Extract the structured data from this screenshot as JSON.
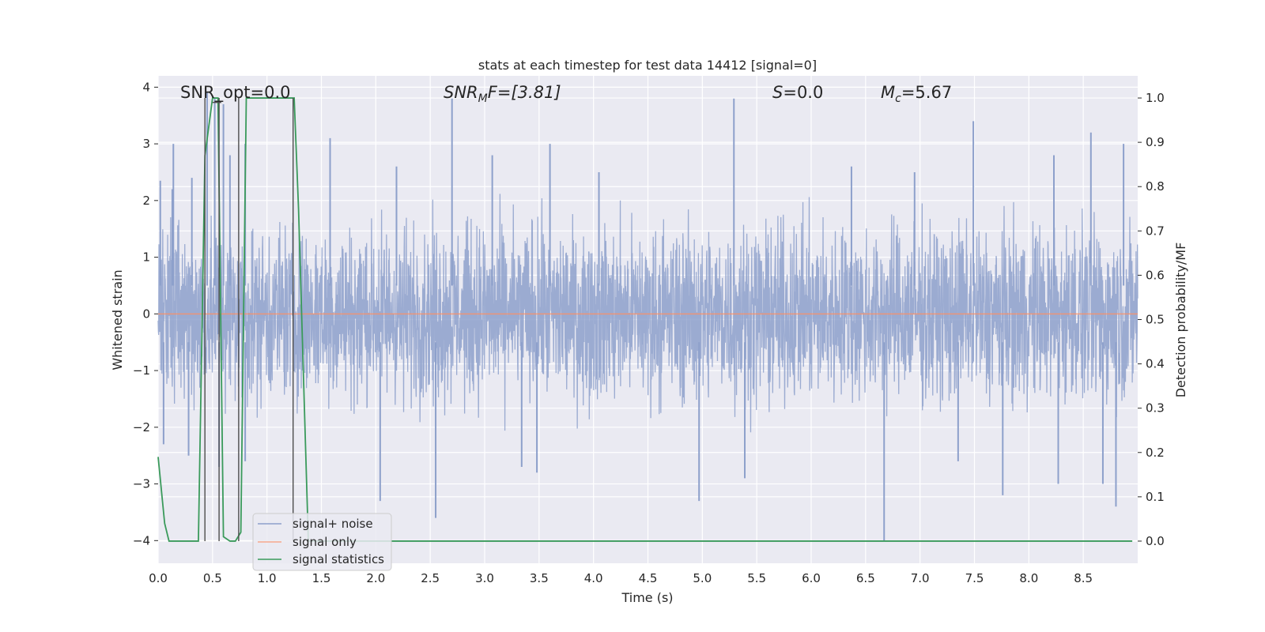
{
  "chart_data": {
    "type": "line",
    "title": "stats at each timestep for test data 14412 [signal=0]",
    "xlabel": "Time (s)",
    "ylabel_left": "Whitened strain",
    "ylabel_right": "Detection probability/MF",
    "xlim": [
      0.0,
      9.0
    ],
    "ylim_left": [
      -4.4,
      4.2
    ],
    "ylim_right": [
      -0.05,
      1.05
    ],
    "x_ticks": [
      0.0,
      0.5,
      1.0,
      1.5,
      2.0,
      2.5,
      3.0,
      3.5,
      4.0,
      4.5,
      5.0,
      5.5,
      6.0,
      6.5,
      7.0,
      7.5,
      8.0,
      8.5
    ],
    "x_tick_labels": [
      "0.0",
      "0.5",
      "1.0",
      "1.5",
      "2.0",
      "2.5",
      "3.0",
      "3.5",
      "4.0",
      "4.5",
      "5.0",
      "5.5",
      "6.0",
      "6.5",
      "7.0",
      "7.5",
      "8.0",
      "8.5"
    ],
    "y_left_ticks": [
      4,
      3,
      2,
      1,
      0,
      -1,
      -2,
      -3,
      -4
    ],
    "y_left_tick_labels": [
      "4",
      "3",
      "2",
      "1",
      "0",
      "−1",
      "−2",
      "−3",
      "−4"
    ],
    "y_right_ticks": [
      1.0,
      0.9,
      0.8,
      0.7,
      0.6,
      0.5,
      0.4,
      0.3,
      0.2,
      0.1,
      0.0
    ],
    "y_right_tick_labels": [
      "1.0",
      "0.9",
      "0.8",
      "0.7",
      "0.6",
      "0.5",
      "0.4",
      "0.3",
      "0.2",
      "0.1",
      "0.0"
    ],
    "grid": true,
    "legend_position": "lower-left",
    "annotations": {
      "snr_opt": "SNR_opt=0.0",
      "snr_mf_name": "SNR",
      "snr_mf_sub": "M",
      "snr_mf_rest": "F=[3.81]",
      "s_name": "S",
      "s_rest": "=0.0",
      "mc_name": "M",
      "mc_sub": "c",
      "mc_rest": "=5.67"
    },
    "series": [
      {
        "name": "signal+ noise",
        "axis": "left",
        "color": "#8da0cb",
        "description_envelope": {
          "typical_high": 1.9,
          "typical_low": -1.6,
          "spike_peaks": [
            [
              0.02,
              2.35
            ],
            [
              0.13,
              2.2
            ],
            [
              0.14,
              3.0
            ],
            [
              0.31,
              2.4
            ],
            [
              0.45,
              3.9
            ],
            [
              0.52,
              3.8
            ],
            [
              0.6,
              3.7
            ],
            [
              0.66,
              2.8
            ],
            [
              0.8,
              3.0
            ],
            [
              1.58,
              3.1
            ],
            [
              2.19,
              2.6
            ],
            [
              2.7,
              3.8
            ],
            [
              3.07,
              2.8
            ],
            [
              3.6,
              3.0
            ],
            [
              4.05,
              2.5
            ],
            [
              5.29,
              3.8
            ],
            [
              6.37,
              2.6
            ],
            [
              6.95,
              2.5
            ],
            [
              7.49,
              3.4
            ],
            [
              8.23,
              2.8
            ],
            [
              8.57,
              3.2
            ],
            [
              8.87,
              3.0
            ]
          ],
          "trough_peaks": [
            [
              0.05,
              -2.3
            ],
            [
              0.28,
              -2.5
            ],
            [
              0.56,
              -2.7
            ],
            [
              0.8,
              -2.6
            ],
            [
              2.04,
              -3.3
            ],
            [
              2.55,
              -3.6
            ],
            [
              3.34,
              -2.7
            ],
            [
              3.48,
              -2.8
            ],
            [
              4.97,
              -3.3
            ],
            [
              5.39,
              -2.9
            ],
            [
              6.67,
              -4.0
            ],
            [
              7.35,
              -2.6
            ],
            [
              7.76,
              -3.2
            ],
            [
              8.27,
              -3.0
            ],
            [
              8.68,
              -3.0
            ],
            [
              8.8,
              -3.4
            ]
          ]
        }
      },
      {
        "name": "signal only",
        "axis": "left",
        "color": "#fc8d62",
        "x": [
          0.0,
          9.0
        ],
        "y": [
          0.0,
          0.0
        ]
      },
      {
        "name": "signal statistics",
        "axis": "right",
        "color": "#66c2a5",
        "x": [
          0.0,
          0.06,
          0.1,
          0.19,
          0.28,
          0.37,
          0.43,
          0.5,
          0.55,
          0.6,
          0.66,
          0.71,
          0.76,
          0.81,
          0.88,
          0.96,
          1.05,
          1.13,
          1.22,
          1.25,
          1.29,
          1.38,
          1.5,
          2.0,
          3.0,
          4.0,
          5.0,
          6.0,
          7.0,
          8.0,
          8.95
        ],
        "y": [
          0.19,
          0.04,
          0.0,
          0.0,
          0.0,
          0.0,
          0.87,
          1.0,
          1.0,
          0.01,
          0.0,
          0.0,
          0.02,
          1.0,
          1.0,
          1.0,
          1.0,
          1.0,
          1.0,
          1.0,
          0.75,
          0.0,
          0.0,
          0.0,
          0.0,
          0.0,
          0.0,
          0.0,
          0.0,
          0.0,
          0.0
        ]
      }
    ],
    "vertical_markers": {
      "axis": "right",
      "color": "#4d4d4d",
      "segments": [
        {
          "x": 0.43,
          "y0": 0.0,
          "y1": 1.0
        },
        {
          "x": 0.56,
          "y0": 0.0,
          "y1": 1.0
        },
        {
          "x": 0.74,
          "y0": 0.0,
          "y1": 1.0
        },
        {
          "x": 1.24,
          "y0": 0.0,
          "y1": 1.0
        }
      ],
      "horizontal_segments": [
        {
          "x0": 0.5,
          "x1": 0.58,
          "y": 0.99
        }
      ]
    }
  }
}
